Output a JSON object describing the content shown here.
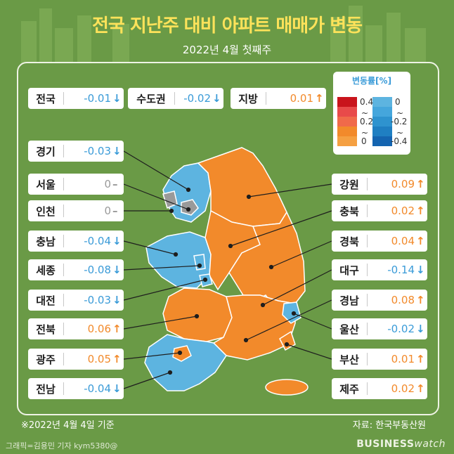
{
  "title": "전국 지난주 대비 아파트 매매가 변동",
  "subtitle": "2022년 4월 첫째주",
  "colors": {
    "up": "#f28a2b",
    "down": "#3a9bd8",
    "zero": "#9a9a9a"
  },
  "legend": {
    "title": "변동률[%]",
    "up_labels": [
      "0.4",
      "~",
      "0.2",
      "~",
      "0"
    ],
    "down_labels": [
      "0",
      "~",
      "-0.2",
      "~",
      "-0.4"
    ]
  },
  "chart_data": {
    "type": "table",
    "title": "전국 지난주 대비 아파트 매매가 변동",
    "subtitle": "2022년 4월 첫째주",
    "unit": "%",
    "summary": [
      {
        "region": "전국",
        "value": "-0.01",
        "dir": "down"
      },
      {
        "region": "수도권",
        "value": "-0.02",
        "dir": "down"
      },
      {
        "region": "지방",
        "value": "0.01",
        "dir": "up"
      }
    ],
    "left": [
      {
        "region": "경기",
        "value": "-0.03",
        "dir": "down"
      },
      {
        "region": "서울",
        "value": "0",
        "dir": "zero"
      },
      {
        "region": "인천",
        "value": "0",
        "dir": "zero"
      },
      {
        "region": "충남",
        "value": "-0.04",
        "dir": "down"
      },
      {
        "region": "세종",
        "value": "-0.08",
        "dir": "down"
      },
      {
        "region": "대전",
        "value": "-0.03",
        "dir": "down"
      },
      {
        "region": "전북",
        "value": "0.06",
        "dir": "up"
      },
      {
        "region": "광주",
        "value": "0.05",
        "dir": "up"
      },
      {
        "region": "전남",
        "value": "-0.04",
        "dir": "down"
      }
    ],
    "right": [
      {
        "region": "강원",
        "value": "0.09",
        "dir": "up"
      },
      {
        "region": "충북",
        "value": "0.02",
        "dir": "up"
      },
      {
        "region": "경북",
        "value": "0.04",
        "dir": "up"
      },
      {
        "region": "대구",
        "value": "-0.14",
        "dir": "down"
      },
      {
        "region": "경남",
        "value": "0.08",
        "dir": "up"
      },
      {
        "region": "울산",
        "value": "-0.02",
        "dir": "down"
      },
      {
        "region": "부산",
        "value": "0.01",
        "dir": "up"
      },
      {
        "region": "제주",
        "value": "0.02",
        "dir": "up"
      }
    ]
  },
  "footer": {
    "date_note": "※2022년 4월 4일 기준",
    "source": "자료: 한국부동산원",
    "credit": "그래픽=김용민 기자 kym5380@",
    "brand_bold": "BUSINESS",
    "brand_light": "watch"
  }
}
